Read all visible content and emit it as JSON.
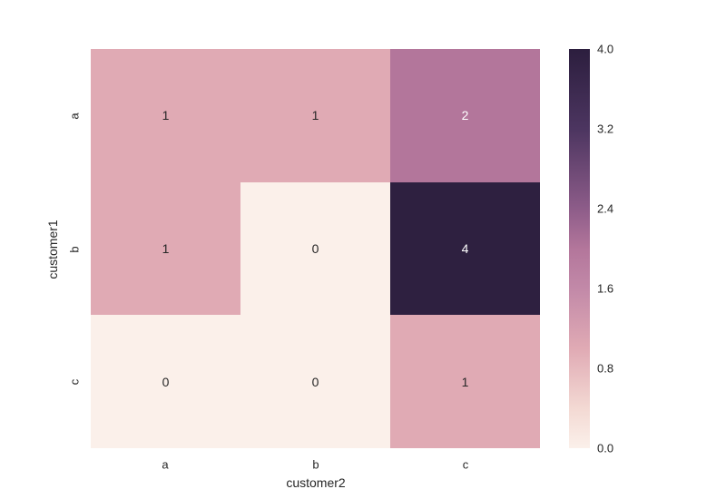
{
  "chart_data": {
    "type": "heatmap",
    "title": "",
    "xlabel": "customer2",
    "ylabel": "customer1",
    "x_categories": [
      "a",
      "b",
      "c"
    ],
    "y_categories": [
      "a",
      "b",
      "c"
    ],
    "rows": [
      [
        1,
        1,
        2
      ],
      [
        1,
        0,
        4
      ],
      [
        0,
        0,
        1
      ]
    ],
    "vmin": 0.0,
    "vmax": 4.0,
    "annotated": true,
    "grid": false,
    "legend_position": "right-colorbar",
    "colorbar_ticks": [
      4.0,
      3.2,
      2.4,
      1.6,
      0.8,
      0.0
    ]
  },
  "cells": [
    {
      "value": "1",
      "bg": "#e0aab4",
      "fg": "#262626"
    },
    {
      "value": "1",
      "bg": "#e0aab4",
      "fg": "#262626"
    },
    {
      "value": "2",
      "bg": "#b3769b",
      "fg": "#ffffff"
    },
    {
      "value": "1",
      "bg": "#e0aab4",
      "fg": "#262626"
    },
    {
      "value": "0",
      "bg": "#fbf0ea",
      "fg": "#262626"
    },
    {
      "value": "4",
      "bg": "#2e2040",
      "fg": "#ffffff"
    },
    {
      "value": "0",
      "bg": "#fbf0ea",
      "fg": "#262626"
    },
    {
      "value": "0",
      "bg": "#fbf0ea",
      "fg": "#262626"
    },
    {
      "value": "1",
      "bg": "#e0aab4",
      "fg": "#262626"
    }
  ],
  "axes": {
    "xlabel": "customer2",
    "ylabel": "customer1",
    "xticks": [
      "a",
      "b",
      "c"
    ],
    "yticks": [
      "a",
      "b",
      "c"
    ]
  },
  "colorbar": {
    "ticks": [
      "4.0",
      "3.2",
      "2.4",
      "1.6",
      "0.8",
      "0.0"
    ],
    "gradient_stops": [
      "#2c1e3e 0%",
      "#4c3560 20%",
      "#8d5c89 40%",
      "#b3769b 50%",
      "#c289a8 60%",
      "#e0aab4 75%",
      "#f3d9d3 90%",
      "#fbf0ea 100%"
    ]
  },
  "colors": {
    "background": "#ffffff",
    "text": "#262626",
    "value0": "#fbf0ea",
    "value1": "#e0aab4",
    "value2": "#b3769b",
    "value4": "#2e2040"
  }
}
